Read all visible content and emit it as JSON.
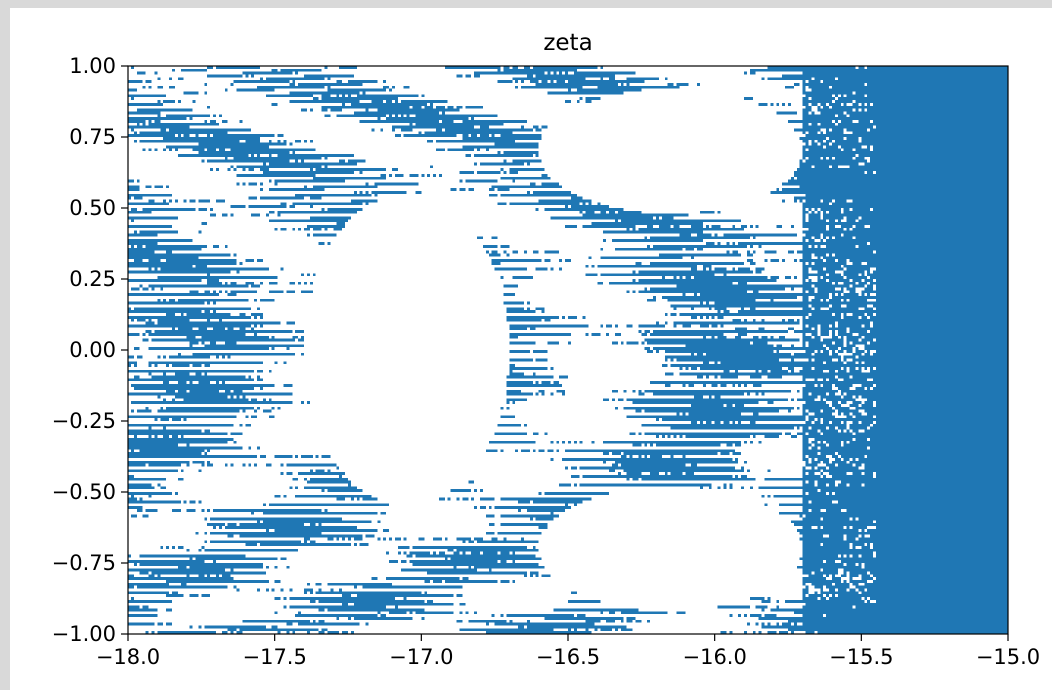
{
  "chart_data": {
    "type": "heatmap",
    "title": "zeta",
    "xlabel": "",
    "ylabel": "",
    "xlim": [
      -18.0,
      -15.0
    ],
    "ylim": [
      -1.0,
      1.0
    ],
    "grid": false,
    "legend": "none",
    "x_ticks": [
      -18.0,
      -17.5,
      -17.0,
      -16.5,
      -16.0,
      -15.5,
      -15.0
    ],
    "x_tick_labels": [
      "−18.0",
      "−17.5",
      "−17.0",
      "−16.5",
      "−16.0",
      "−15.5",
      "−15.0"
    ],
    "y_ticks": [
      1.0,
      0.75,
      0.5,
      0.25,
      0.0,
      -0.25,
      -0.5,
      -0.75,
      -1.0
    ],
    "y_tick_labels": [
      "1.00",
      "0.75",
      "0.50",
      "0.25",
      "0.00",
      "−0.25",
      "−0.50",
      "−0.75",
      "−1.00"
    ],
    "colors": {
      "filled": "#1f77b4",
      "empty": "#ffffff"
    },
    "description_of_values": "binary escape-time fractal mask; filled cells drawn blue",
    "solid_region_x_start": -15.7
  }
}
